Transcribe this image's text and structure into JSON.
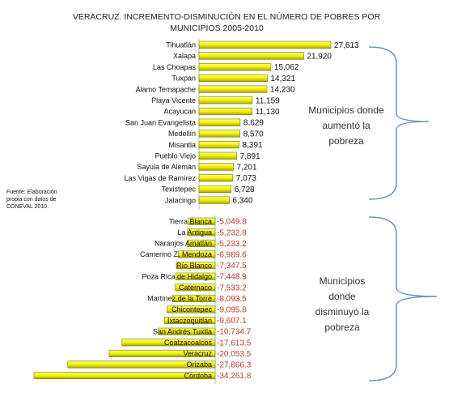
{
  "chart_data": {
    "type": "bar",
    "orientation": "horizontal",
    "title_lines": [
      "VERACRUZ. INCREMENTO-DISMINUCIÓN  EN EL NÚMERO DE POBRES POR",
      "MUNICIPIOS  2005-2010"
    ],
    "categories_positive": [
      "Tihuatlán",
      "Xalapa",
      "Las Choapas",
      "Tuxpan",
      "Álamo Temapache",
      "Playa Vicente",
      "Acayucan",
      "San Juan Evangelista",
      "Medellín",
      "Misantla",
      "Pueblo Viejo",
      "Sayula de Alemán",
      "Las Vigas de Ramírez",
      "Texistepec",
      "Jalacingo"
    ],
    "values_positive": [
      27613,
      21920,
      15062,
      14321,
      14230,
      11159,
      11130,
      8629,
      8570,
      8391,
      7891,
      7201,
      7073,
      6728,
      6340
    ],
    "labels_positive": [
      "27,613",
      "21,920",
      "15,062",
      "14,321",
      "14,230",
      "11,159",
      "11,130",
      "8,629",
      "8,570",
      "8,391",
      "7,891",
      "7,201",
      "7,073",
      "6,728",
      "6,340"
    ],
    "categories_negative": [
      "Tierra Blanca",
      "La Antigua",
      "Naranjos Amatlán",
      "Camerino Z. Mendoza",
      "Río Blanco",
      "Poza Rica de Hidalgo",
      "Catemaco",
      "Martínez de la Torre",
      "Chicontepec",
      "Ixtaczoquitlán",
      "San Andrés Tuxtla",
      "Coatzacoalcos",
      "Veracruz",
      "Orizaba",
      "Córdoba"
    ],
    "values_negative": [
      -5049.8,
      -5232.8,
      -5233.2,
      -6989.6,
      -7347.5,
      -7448.9,
      -7533.2,
      -8093.5,
      -9095.8,
      -9607.1,
      -10734.7,
      -17613.5,
      -20053.5,
      -27866.3,
      -34261.8
    ],
    "labels_negative": [
      "-5,049.8",
      "-5,232.8",
      "-5,233.2",
      "-6,989.6",
      "-7,347.5",
      "-7,448.9",
      "-7,533.2",
      "-8,093.5",
      "-9,095.8",
      "-9,607.1",
      "-10,734.7",
      "-17,613.5",
      "-20,053.5",
      "-27,866.3",
      "-34,261.8"
    ],
    "bar_color": "#f2f200",
    "bar_edge_color": "#7a7a00",
    "negative_label_color": "#c0392b"
  },
  "annotations": {
    "up": [
      "Municipios donde",
      "aumentó la",
      "pobreza"
    ],
    "down": [
      "Municipios",
      "donde",
      "disminuyó la",
      "pobreza"
    ]
  },
  "note": [
    "Fuente: Elaboración",
    "propia con datos de",
    "CONEVAL 2010."
  ]
}
